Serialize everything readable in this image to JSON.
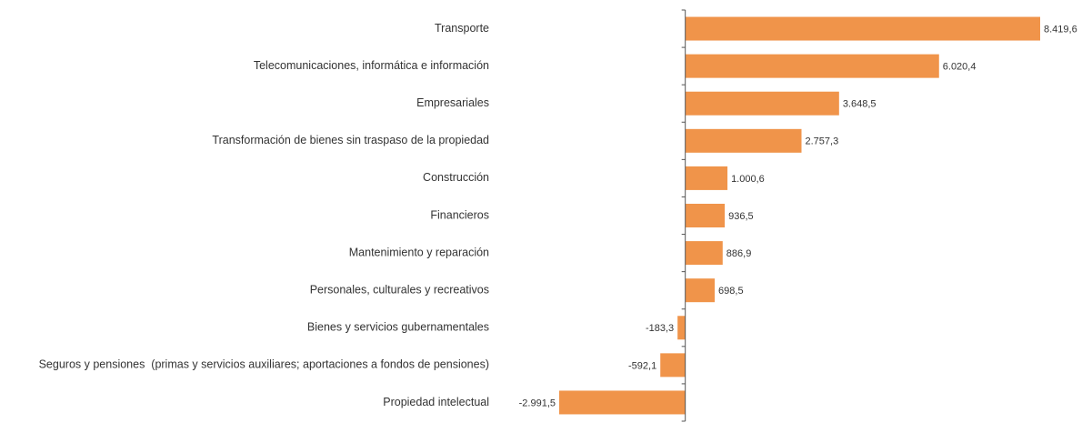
{
  "chart_data": {
    "type": "barh",
    "categories": [
      "Transporte",
      "Telecomunicaciones, informática e información",
      "Empresariales",
      "Transformación de bienes sin traspaso de la propiedad",
      "Construcción",
      "Financieros",
      "Mantenimiento y reparación",
      "Personales, culturales y recreativos",
      "Bienes y servicios gubernamentales",
      "Seguros y pensiones  (primas y servicios auxiliares; aportaciones a fondos de pensiones)",
      "Propiedad intelectual"
    ],
    "values": [
      8419.6,
      6020.4,
      3648.5,
      2757.3,
      1000.6,
      936.5,
      886.9,
      698.5,
      -183.3,
      -592.1,
      -2991.5
    ],
    "value_labels": [
      "8.419,6",
      "6.020,4",
      "3.648,5",
      "2.757,3",
      "1.000,6",
      "936,5",
      "886,9",
      "698,5",
      "-183,3",
      "-592,1",
      "-2.991,5"
    ],
    "color": "#f0944a"
  }
}
